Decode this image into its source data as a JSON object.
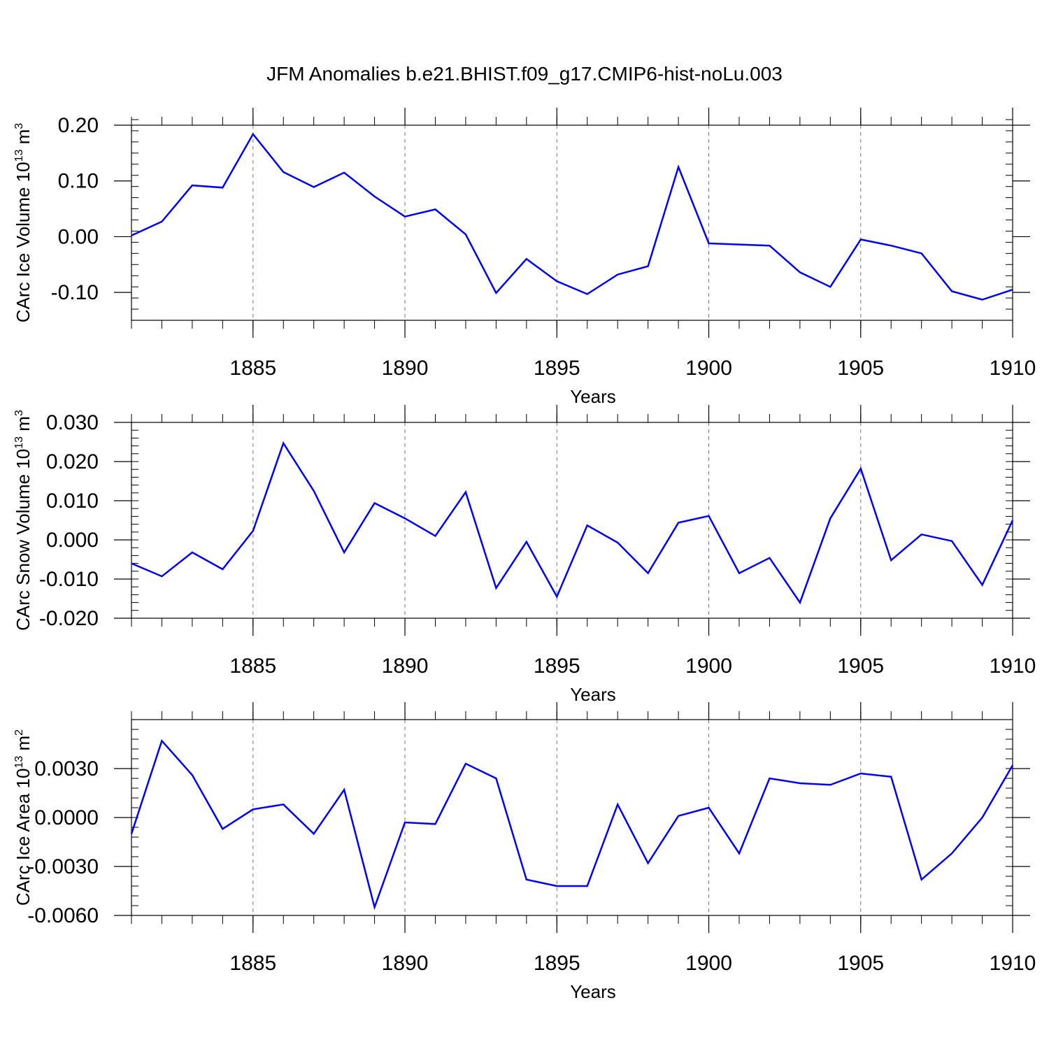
{
  "chart_data": {
    "type": "line",
    "title": "JFM Anomalies b.e21.BHIST.f09_g17.CMIP6-hist-noLu.003",
    "series_color": "#0000ff",
    "x": [
      1881,
      1882,
      1883,
      1884,
      1885,
      1886,
      1887,
      1888,
      1889,
      1890,
      1891,
      1892,
      1893,
      1894,
      1895,
      1896,
      1897,
      1898,
      1899,
      1900,
      1901,
      1902,
      1903,
      1904,
      1905,
      1906,
      1907,
      1908,
      1909,
      1910
    ],
    "xlim": [
      1881,
      1910
    ],
    "xticks": [
      1885,
      1890,
      1895,
      1900,
      1905,
      1910
    ],
    "xtick_labels": [
      "1885",
      "1890",
      "1895",
      "1900",
      "1905",
      "1910"
    ],
    "grid": "dashed vertical at major x ticks",
    "panels": [
      {
        "id": "ice-volume",
        "ylabel": "CArc Ice Volume 10",
        "ylabel_exp": "13",
        "ylabel_unit": " m",
        "ylabel_unit_exp": "3",
        "xlabel": "Years",
        "ylim": [
          -0.15,
          0.2
        ],
        "yticks": [
          0.2,
          0.1,
          0.0,
          -0.1
        ],
        "ytick_labels": [
          "0.20",
          "0.10",
          "0.00",
          "-0.10"
        ],
        "yminor_step": 0.02,
        "values": [
          0.002,
          0.027,
          0.092,
          0.088,
          0.184,
          0.116,
          0.089,
          0.115,
          0.072,
          0.036,
          0.049,
          0.004,
          -0.101,
          -0.04,
          -0.08,
          -0.103,
          -0.068,
          -0.053,
          0.125,
          -0.012,
          -0.014,
          -0.016,
          -0.064,
          -0.09,
          -0.005,
          -0.016,
          -0.03,
          -0.098,
          -0.113,
          -0.095
        ]
      },
      {
        "id": "snow-volume",
        "ylabel": "CArc Snow Volume 10",
        "ylabel_exp": "13",
        "ylabel_unit": " m",
        "ylabel_unit_exp": "3",
        "xlabel": "Years",
        "ylim": [
          -0.02,
          0.03
        ],
        "yticks": [
          0.03,
          0.02,
          0.01,
          0.0,
          -0.01,
          -0.02
        ],
        "ytick_labels": [
          "0.030",
          "0.020",
          "0.010",
          "0.000",
          "-0.010",
          "-0.020"
        ],
        "yminor_step": 0.002,
        "values": [
          -0.006,
          -0.0093,
          -0.0032,
          -0.0075,
          0.0023,
          0.0247,
          0.0125,
          -0.0032,
          0.0094,
          0.0055,
          0.001,
          0.0122,
          -0.0123,
          -0.0005,
          -0.0145,
          0.0037,
          -0.0007,
          -0.0085,
          0.0044,
          0.0061,
          -0.0085,
          -0.0046,
          -0.016,
          0.0055,
          0.0182,
          -0.0052,
          0.0014,
          -0.0003,
          -0.0115,
          0.005
        ]
      },
      {
        "id": "ice-area",
        "ylabel": "CArc Ice Area 10",
        "ylabel_exp": "13",
        "ylabel_unit": " m",
        "ylabel_unit_exp": "2",
        "xlabel": "Years",
        "ylim": [
          -0.006,
          0.006
        ],
        "yticks": [
          0.003,
          0.0,
          -0.003,
          -0.006
        ],
        "ytick_labels": [
          "0.0030",
          "0.0000",
          "-0.0030",
          "-0.0060"
        ],
        "yminor_step": 0.0006,
        "values": [
          -0.001,
          0.0047,
          0.0026,
          -0.0007,
          0.0005,
          0.0008,
          -0.001,
          0.0017,
          -0.0055,
          -0.0003,
          -0.0004,
          0.0033,
          0.0024,
          -0.0038,
          -0.0042,
          -0.0042,
          0.0008,
          -0.0028,
          0.0001,
          0.0006,
          -0.0022,
          0.0024,
          0.0021,
          0.002,
          0.0027,
          0.0025,
          -0.0038,
          -0.0022,
          0.0,
          0.0032
        ]
      }
    ]
  }
}
